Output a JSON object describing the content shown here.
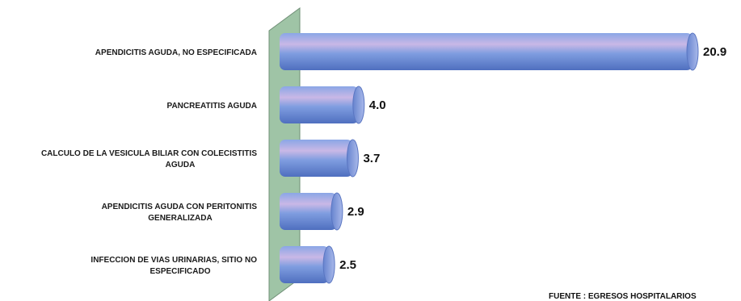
{
  "chart_data": {
    "type": "bar",
    "orientation": "horizontal",
    "categories": [
      "APENDICITIS AGUDA, NO ESPECIFICADA",
      "PANCREATITIS AGUDA",
      "CALCULO DE LA VESICULA BILIAR CON COLECISTITIS AGUDA",
      "APENDICITIS AGUDA CON PERITONITIS GENERALIZADA",
      "INFECCION DE VIAS URINARIAS, SITIO NO ESPECIFICADO"
    ],
    "category_lines": [
      [
        "APENDICITIS AGUDA, NO ESPECIFICADA"
      ],
      [
        "PANCREATITIS AGUDA"
      ],
      [
        "CALCULO DE LA VESICULA BILIAR CON COLECISTITIS",
        "AGUDA"
      ],
      [
        "APENDICITIS AGUDA CON PERITONITIS",
        "GENERALIZADA"
      ],
      [
        "INFECCION DE VIAS URINARIAS, SITIO NO",
        "ESPECIFICADO"
      ]
    ],
    "values": [
      20.9,
      4.0,
      3.7,
      2.9,
      2.5
    ],
    "value_labels": [
      "20.9",
      "4.0",
      "3.7",
      "2.9",
      "2.5"
    ],
    "title": "",
    "xlabel": "",
    "ylabel": "",
    "xlim": [
      0,
      20.9
    ],
    "grid": false,
    "legend": "none",
    "bar_style": "3d-cylinder",
    "colors": {
      "bar": "#6f8fd8",
      "bar_highlight": "#c9b8e6",
      "wall": "#9fc4a6"
    }
  },
  "footer": {
    "source": "FUENTE : EGRESOS HOSPITALARIOS"
  }
}
